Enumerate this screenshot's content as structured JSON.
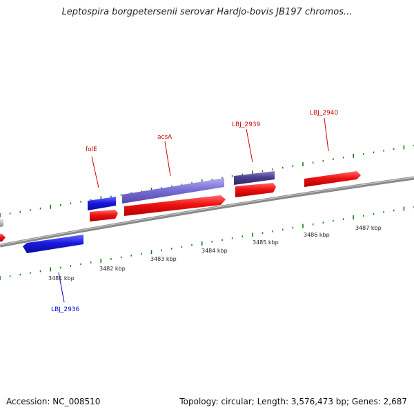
{
  "header": {
    "title": "Leptospira borgpetersenii serovar Hardjo-bovis JB197 chromos..."
  },
  "footer": {
    "accession": "Accession: NC_008510",
    "summary": "Topology: circular; Length: 3,576,473 bp; Genes: 2,687"
  },
  "map": {
    "scale_labels": [
      "3481 kbp",
      "3482 kbp",
      "3483 kbp",
      "3484 kbp",
      "3485 kbp",
      "3486 kbp",
      "3487 kbp"
    ],
    "genes": [
      {
        "name": "folE",
        "strand": "forward",
        "color": "#cc0000"
      },
      {
        "name": "acsA",
        "strand": "forward",
        "color": "#cc0000"
      },
      {
        "name": "LBJ_2939",
        "strand": "forward",
        "color": "#cc0000"
      },
      {
        "name": "LBJ_2940",
        "strand": "forward",
        "color": "#cc0000"
      },
      {
        "name": "LBJ_2936",
        "strand": "reverse",
        "color": "#0000cc"
      }
    ],
    "colors": {
      "backbone": "#8a8a8a",
      "tick": "#1a7a1a",
      "feature_red": "#ee1111",
      "feature_blue": "#1a1ae0",
      "feature_purple": "#7b6fd6",
      "feature_dark_purple": "#4a3f8f"
    }
  }
}
